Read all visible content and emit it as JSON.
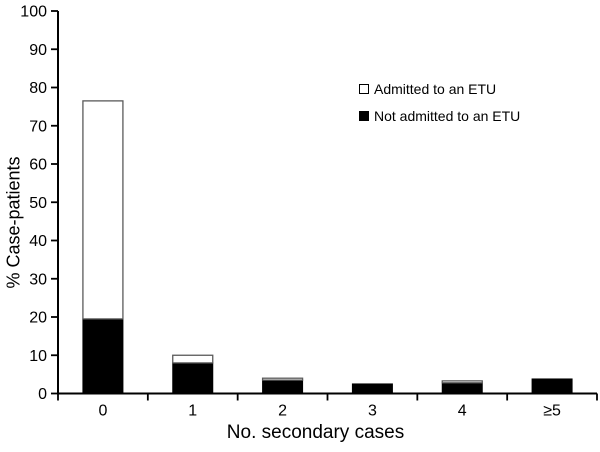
{
  "figure": {
    "background_color": "#ffffff",
    "bar_fill_black": "#000000",
    "bar_fill_white": "#ffffff",
    "bar_outline_color": "#5a5a5a",
    "axis_color": "#000000"
  },
  "chart_data": {
    "type": "bar",
    "stacked": true,
    "title": "",
    "xlabel": "No. secondary cases",
    "ylabel": "% Case-patients",
    "categories": [
      "0",
      "1",
      "2",
      "3",
      "4",
      "≥5"
    ],
    "series": [
      {
        "name": "Not admitted to an ETU",
        "color": "#000000",
        "values": [
          19.5,
          8,
          3.5,
          2.5,
          2.8,
          3.8
        ]
      },
      {
        "name": "Admitted to an ETU",
        "color": "#ffffff",
        "values": [
          57,
          2,
          0.5,
          0,
          0.5,
          0
        ]
      }
    ],
    "stack_totals": [
      76.5,
      10,
      4,
      2.5,
      3.3,
      3.8
    ],
    "ylim": [
      0,
      100
    ],
    "y_ticks": [
      0,
      10,
      20,
      30,
      40,
      50,
      60,
      70,
      80,
      90,
      100
    ],
    "grid": false,
    "legend_position": "upper-right-inside",
    "legend": [
      {
        "label": "Admitted to an ETU",
        "swatch": "white"
      },
      {
        "label": "Not admitted to an ETU",
        "swatch": "black"
      }
    ]
  }
}
